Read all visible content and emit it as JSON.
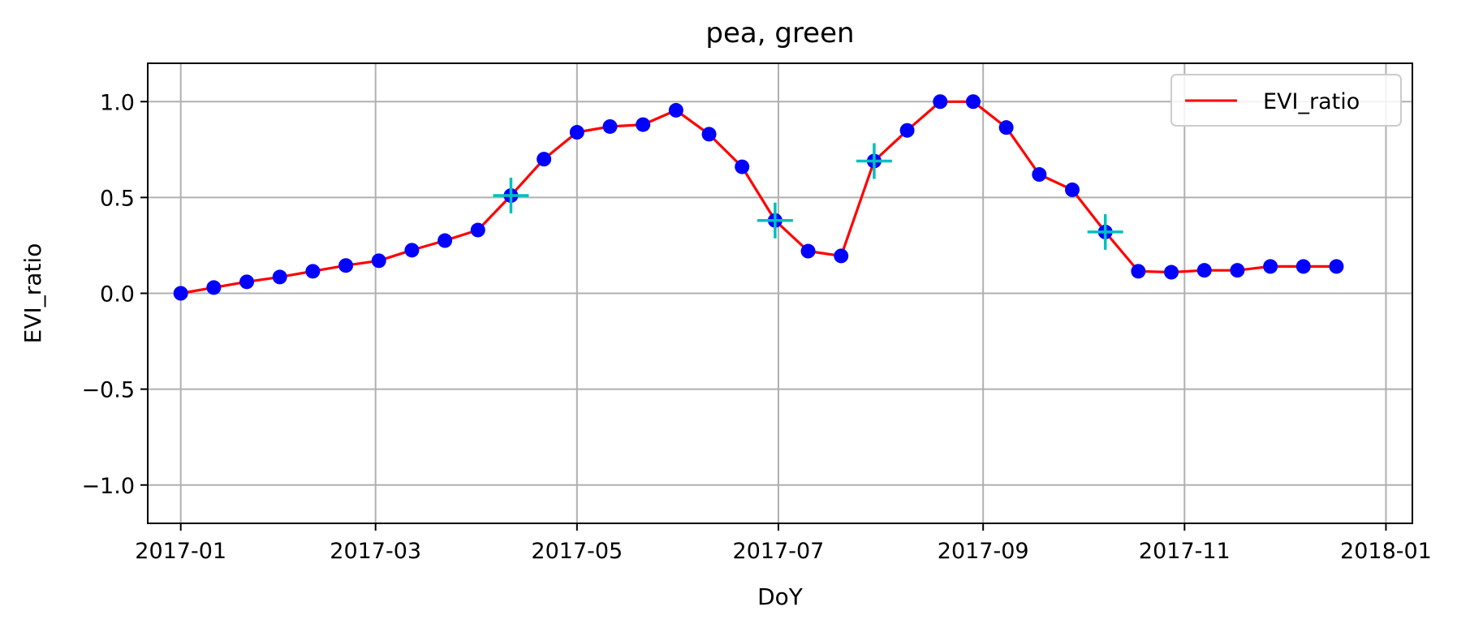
{
  "chart_data": {
    "type": "line",
    "title": "pea, green",
    "xlabel": "DoY",
    "ylabel": "EVI_ratio",
    "x_axis": {
      "scale": "date",
      "range": [
        "2016-12-22",
        "2018-01-09"
      ],
      "ticks": [
        "2017-01-01",
        "2017-03-01",
        "2017-05-01",
        "2017-07-01",
        "2017-09-01",
        "2017-11-01",
        "2018-01-01"
      ],
      "tick_labels": [
        "2017-01",
        "2017-03",
        "2017-05",
        "2017-07",
        "2017-09",
        "2017-11",
        "2018-01"
      ]
    },
    "y_axis": {
      "range": [
        -1.2,
        1.2
      ],
      "ticks": [
        1.0,
        0.5,
        0.0,
        -0.5,
        -1.0
      ],
      "tick_labels": [
        "1.0",
        "0.5",
        "0.0",
        "−0.5",
        "−1.0"
      ]
    },
    "grid": true,
    "legend": {
      "position": "top-right",
      "entries": [
        "EVI_ratio"
      ]
    },
    "colors": {
      "line": "#ff0000",
      "points": "#0000ff",
      "markers": "#00bfbf",
      "grid": "#b0b0b0"
    },
    "series": [
      {
        "name": "EVI_ratio",
        "style": "line",
        "x": [
          "2017-01-01",
          "2017-01-11",
          "2017-01-21",
          "2017-01-31",
          "2017-02-10",
          "2017-02-20",
          "2017-03-02",
          "2017-03-12",
          "2017-03-22",
          "2017-04-01",
          "2017-04-11",
          "2017-04-21",
          "2017-05-01",
          "2017-05-11",
          "2017-05-21",
          "2017-05-31",
          "2017-06-10",
          "2017-06-20",
          "2017-06-30",
          "2017-07-10",
          "2017-07-20",
          "2017-07-30",
          "2017-08-09",
          "2017-08-19",
          "2017-08-29",
          "2017-09-08",
          "2017-09-18",
          "2017-09-28",
          "2017-10-08",
          "2017-10-18",
          "2017-10-28",
          "2017-11-07",
          "2017-11-17",
          "2017-11-27",
          "2017-12-07",
          "2017-12-17"
        ],
        "y": [
          0.0,
          0.03,
          0.06,
          0.085,
          0.115,
          0.145,
          0.17,
          0.225,
          0.275,
          0.33,
          0.51,
          0.7,
          0.84,
          0.87,
          0.88,
          0.955,
          0.83,
          0.66,
          0.38,
          0.22,
          0.195,
          0.69,
          0.85,
          1.0,
          1.0,
          0.865,
          0.62,
          0.54,
          0.32,
          0.115,
          0.11,
          0.12,
          0.12,
          0.14,
          0.14,
          0.14
        ]
      },
      {
        "style": "points",
        "x": [
          "2017-01-01",
          "2017-01-11",
          "2017-01-21",
          "2017-01-31",
          "2017-02-10",
          "2017-02-20",
          "2017-03-02",
          "2017-03-12",
          "2017-03-22",
          "2017-04-01",
          "2017-04-11",
          "2017-04-21",
          "2017-05-01",
          "2017-05-11",
          "2017-05-21",
          "2017-05-31",
          "2017-06-10",
          "2017-06-20",
          "2017-06-30",
          "2017-07-10",
          "2017-07-20",
          "2017-07-30",
          "2017-08-09",
          "2017-08-19",
          "2017-08-29",
          "2017-09-08",
          "2017-09-18",
          "2017-09-28",
          "2017-10-08",
          "2017-10-18",
          "2017-10-28",
          "2017-11-07",
          "2017-11-17",
          "2017-11-27",
          "2017-12-07",
          "2017-12-17"
        ],
        "y": [
          0.0,
          0.03,
          0.06,
          0.085,
          0.115,
          0.145,
          0.17,
          0.225,
          0.275,
          0.33,
          0.51,
          0.7,
          0.84,
          0.87,
          0.88,
          0.955,
          0.83,
          0.66,
          0.38,
          0.22,
          0.195,
          0.69,
          0.85,
          1.0,
          1.0,
          0.865,
          0.62,
          0.54,
          0.32,
          0.115,
          0.11,
          0.12,
          0.12,
          0.14,
          0.14,
          0.14
        ]
      },
      {
        "style": "plus-markers",
        "x": [
          "2017-04-11",
          "2017-06-30",
          "2017-07-30",
          "2017-10-08"
        ],
        "y": [
          0.51,
          0.38,
          0.69,
          0.32
        ]
      }
    ]
  }
}
